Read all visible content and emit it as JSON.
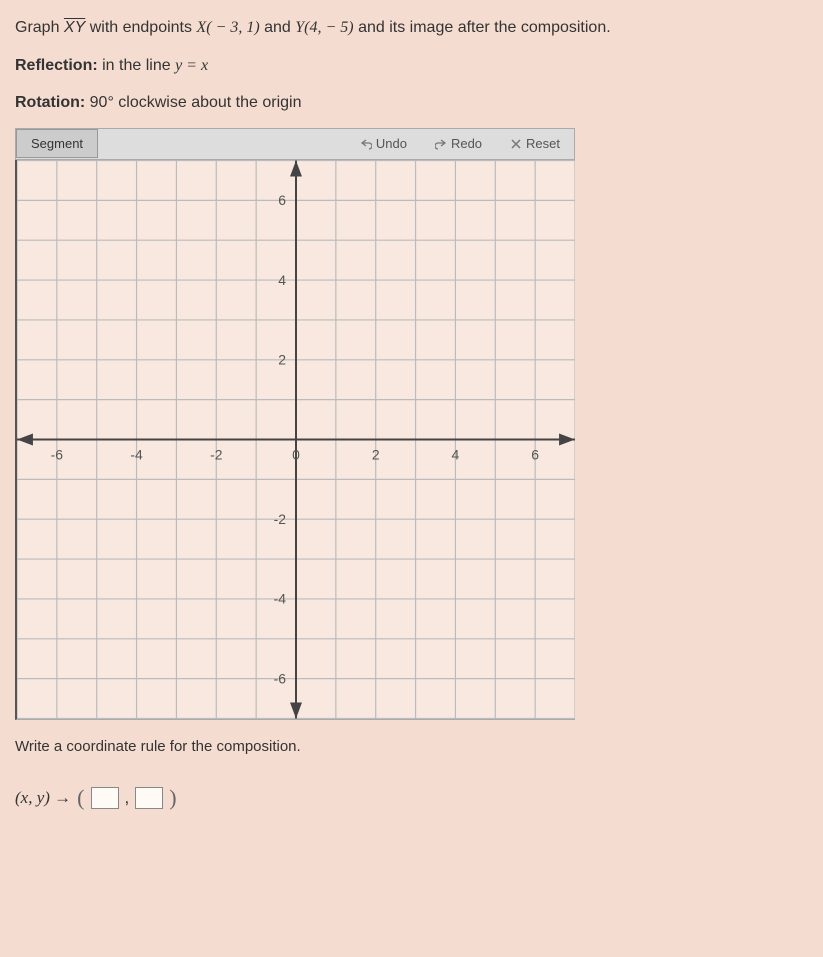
{
  "problem": {
    "prefix": "Graph ",
    "segment": "XY",
    "mid1": " with endpoints ",
    "pointX": "X( − 3, 1)",
    "mid2": " and ",
    "pointY": "Y(4, − 5)",
    "suffix": " and its image after the composition."
  },
  "reflection": {
    "label": "Reflection:",
    "text": " in the line ",
    "eq": "y = x"
  },
  "rotation": {
    "label": "Rotation:",
    "text": " 90° clockwise about the origin"
  },
  "toolbar": {
    "segment": "Segment",
    "undo": "Undo",
    "redo": "Redo",
    "reset": "Reset"
  },
  "graph": {
    "xmin": -7,
    "xmax": 7,
    "ymin": -7,
    "ymax": 7,
    "ticks": [
      -6,
      -4,
      -2,
      0,
      2,
      4,
      6
    ],
    "xtick_labels": [
      "-6",
      "-4",
      "-2",
      "0",
      "2",
      "4",
      "6"
    ],
    "ytick_labels": [
      "-6",
      "-4",
      "-2",
      "2",
      "4",
      "6"
    ],
    "grid_color": "#bbb",
    "axis_color": "#444",
    "bg_color": "#f8e8e0"
  },
  "instruction": "Write a coordinate rule for the composition.",
  "rule": {
    "lhs": "(x, y) →"
  }
}
